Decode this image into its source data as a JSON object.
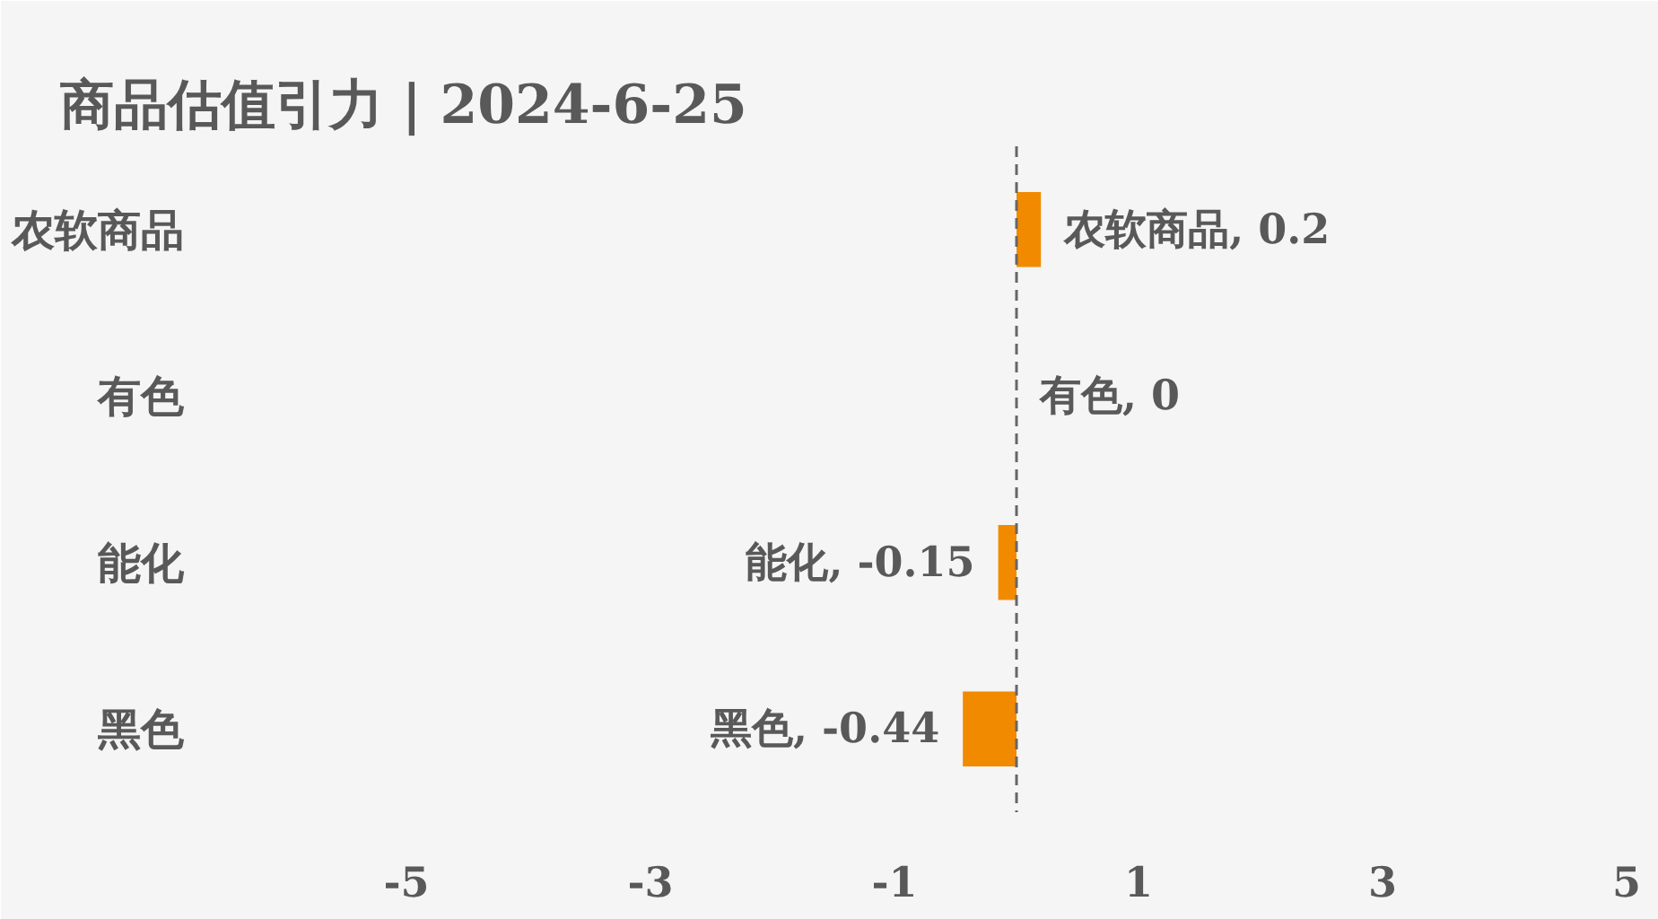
{
  "chart_data": {
    "type": "bar",
    "orientation": "horizontal",
    "title": "商品估值引力 | 2024-6-25",
    "categories": [
      "农软商品",
      "有色",
      "能化",
      "黑色"
    ],
    "values": [
      0.2,
      0,
      -0.15,
      -0.44
    ],
    "color": "#f28a00",
    "value_labels": [
      "农软商品, 0.2",
      "有色, 0",
      "能化, -0.15",
      "黑色, -0.44"
    ],
    "xlim": [
      -5,
      5
    ],
    "xticks": [
      -5,
      -3,
      -1,
      1,
      3,
      5
    ],
    "ref_lines": [
      {
        "axis": "x",
        "value": 0,
        "color": "#666666",
        "line_style": "dashed"
      }
    ]
  }
}
